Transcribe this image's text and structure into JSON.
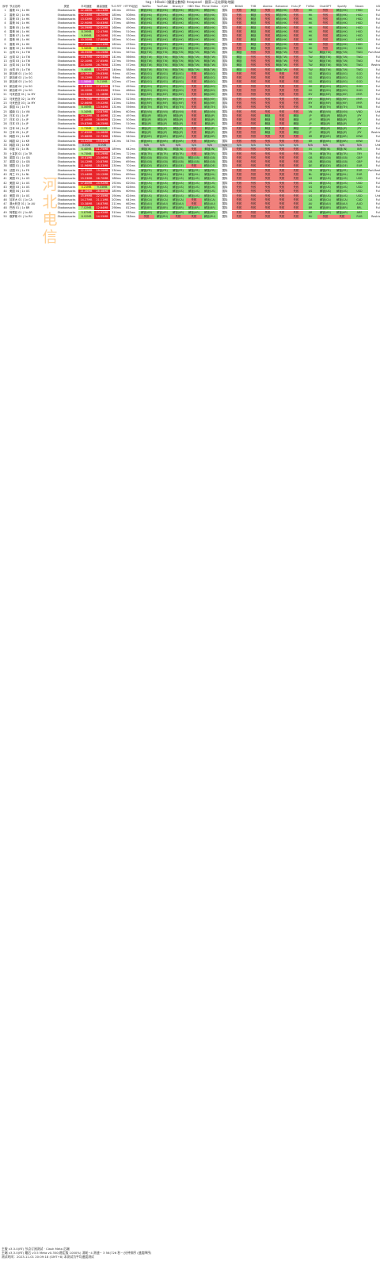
{
  "title": "tag – Hiboki (優選宝數線) troopood · 國家=泛化節點地圖",
  "watermark": "河北电信",
  "headers": [
    "序号",
    "节点名称",
    "类型",
    "平均速度",
    "最高速度",
    "TLS RTT",
    "HTTPS延迟",
    "Netflix",
    "YouTube",
    "Disney+",
    "HBO Max",
    "Prime Video",
    "iQIYI",
    "Bilibili",
    "TVB",
    "Abema",
    "Bahamut",
    "Hulu JP",
    "TikTok",
    "ChatGPT",
    "Spotify",
    "Steam",
    "UDP类型"
  ],
  "rows": [
    [
      "1",
      "香港 01 | 1x HK",
      "Shadowsocks",
      "22.46MB",
      "28.13MB",
      "161ms",
      "495ms",
      "解锁(HK)",
      "解锁(HK)",
      "解锁(HK)",
      "解锁(HK)",
      "解锁(HK)",
      "国际",
      "失败",
      "解锁",
      "失败",
      "解锁(HK)",
      "失败",
      "HK",
      "失败",
      "解锁(HK)",
      "HKD",
      "FullCone"
    ],
    [
      "2",
      "香港 02 | 1x HK",
      "Shadowsocks",
      "12.33MB",
      "18.20MB",
      "185ms",
      "508ms",
      "解锁(HK)",
      "解锁(HK)",
      "解锁(HK)",
      "解锁(HK)",
      "解锁(HK)",
      "国际",
      "失败",
      "解锁",
      "失败",
      "解锁(HK)",
      "失败",
      "HK",
      "失败",
      "解锁(HK)",
      "HKD",
      "FullCone"
    ],
    [
      "3",
      "香港 03 | 1x HK",
      "Shadowsocks",
      "13.52MB",
      "20.11MB",
      "176ms",
      "502ms",
      "解锁(HK)",
      "解锁(HK)",
      "解锁(HK)",
      "解锁(HK)",
      "解锁(HK)",
      "国际",
      "失败",
      "解锁",
      "失败",
      "解锁(HK)",
      "失败",
      "HK",
      "失败",
      "解锁(HK)",
      "HKD",
      "FullCone"
    ],
    [
      "4",
      "香港 04 | 1x HK",
      "Shadowsocks",
      "22.90MB",
      "30.63MB",
      "170ms",
      "489ms",
      "解锁(HK)",
      "解锁(HK)",
      "解锁(HK)",
      "解锁(HK)",
      "解锁(HK)",
      "国际",
      "失败",
      "解锁",
      "失败",
      "解锁(HK)",
      "失败",
      "HK",
      "失败",
      "解锁(HK)",
      "HKD",
      "FullCone"
    ],
    [
      "5",
      "香港 05 | 1x HK",
      "Shadowsocks",
      "24.59MB",
      "32.82MB",
      "168ms",
      "490ms",
      "解锁(HK)",
      "解锁(HK)",
      "解锁(HK)",
      "解锁(HK)",
      "解锁(HK)",
      "国际",
      "失败",
      "解锁",
      "失败",
      "解锁(HK)",
      "失败",
      "HK",
      "失败",
      "解锁(HK)",
      "HKD",
      "FullCone"
    ],
    [
      "6",
      "香港 06 | 1x HK",
      "Shadowsocks",
      "8.39MB",
      "12.47MB",
      "198ms",
      "510ms",
      "解锁(HK)",
      "解锁(HK)",
      "解锁(HK)",
      "解锁(HK)",
      "解锁(HK)",
      "国际",
      "失败",
      "解锁",
      "失败",
      "解锁(HK)",
      "失败",
      "HK",
      "失败",
      "解锁(HK)",
      "HKD",
      "FullCone"
    ],
    [
      "7",
      "香港 07 | 1x HK",
      "Shadowsocks",
      "9.89MB",
      "14.20MB",
      "191ms",
      "530ms",
      "解锁(HK)",
      "解锁(HK)",
      "解锁(HK)",
      "解锁(HK)",
      "解锁(HK)",
      "国际",
      "失败",
      "解锁",
      "失败",
      "解锁(HK)",
      "失败",
      "HK",
      "失败",
      "解锁(HK)",
      "HKD",
      "FullCone"
    ],
    [
      "8",
      "香港 08 | 1x HK",
      "Shadowsocks",
      "10.30MB",
      "17.80MB",
      "183ms",
      "501ms",
      "解锁(HK)",
      "解锁(HK)",
      "解锁(HK)",
      "解锁(HK)",
      "解锁(HK)",
      "国际",
      "失败",
      "解锁",
      "失败",
      "解锁(HK)",
      "失败",
      "HK",
      "失败",
      "解锁(HK)",
      "HKD",
      "FullCone"
    ],
    [
      "9",
      "香港 09 | 1x HK",
      "Shadowsocks",
      "17.09MB",
      "24.11MB",
      "160ms",
      "478ms",
      "解锁(HK)",
      "解锁(HK)",
      "解锁(HK)",
      "解锁(HK)",
      "解锁(HK)",
      "国际",
      "失败",
      "解锁",
      "失败",
      "解锁(HK)",
      "失败",
      "HK",
      "失败",
      "解锁(HK)",
      "HKD",
      "FullCone"
    ],
    [
      "10",
      "香港 10 | 1x HKD",
      "Shadowsocks",
      "3.56MB",
      "8.00MB",
      "202ms",
      "541ms",
      "解锁(HK)",
      "解锁(HK)",
      "解锁(HK)",
      "解锁(HK)",
      "解锁(HK)",
      "国际",
      "失败",
      "解锁",
      "失败",
      "解锁(HK)",
      "失败",
      "HK",
      "失败",
      "解锁(HK)",
      "HKD",
      "FullCone"
    ],
    [
      "11",
      "台湾 01 | 1x TW",
      "Shadowsocks",
      "18.55MB",
      "24.15MB",
      "132ms",
      "567ms",
      "解锁(TW)",
      "解锁(TW)",
      "解锁(TW)",
      "解锁(TW)",
      "解锁(TW)",
      "国际",
      "解锁",
      "失败",
      "失败",
      "解锁(TW)",
      "失败",
      "TW",
      "解锁(TW)",
      "解锁(TW)",
      "TWD",
      "Port-RestrictedCone"
    ],
    [
      "12",
      "台湾 02 | 1x TW",
      "Shadowsocks",
      "14.87MB",
      "22.54MB",
      "141ms",
      "566ms",
      "解锁(TW)",
      "解锁(TW)",
      "解锁(TW)",
      "解锁(TW)",
      "解锁(TW)",
      "国际",
      "解锁",
      "失败",
      "失败",
      "解锁(TW)",
      "失败",
      "TW",
      "解锁(TW)",
      "解锁(TW)",
      "TWD",
      "FullCone"
    ],
    [
      "13",
      "台湾 03 | 1x TW",
      "Shadowsocks",
      "22.10MB",
      "27.65MB",
      "127ms",
      "559ms",
      "解锁(TW)",
      "解锁(TW)",
      "解锁(TW)",
      "解锁(TW)",
      "解锁(TW)",
      "国际",
      "解锁",
      "失败",
      "失败",
      "解锁(TW)",
      "失败",
      "TW",
      "解锁(TW)",
      "解锁(TW)",
      "TWD",
      "FullCone"
    ],
    [
      "14",
      "台湾 04 | 1x TW",
      "Shadowsocks",
      "20.30MB",
      "26.79MB",
      "133ms",
      "572ms",
      "解锁(TW)",
      "解锁(TW)",
      "解锁(TW)",
      "解锁(TW)",
      "解锁(TW)",
      "国际",
      "解锁",
      "失败",
      "失败",
      "解锁(TW)",
      "失败",
      "TW",
      "解锁(TW)",
      "解锁(TW)",
      "TWD",
      "RestrictedCone"
    ],
    [
      "15",
      "台湾 05 | 1x TW",
      "Shadowsocks",
      "9.46MB",
      "15.24MB",
      "146ms",
      "588ms",
      "解锁(TW)",
      "解锁(TW)",
      "解锁(TW)",
      "解锁(TW)",
      "解锁(TW)",
      "国际",
      "解锁",
      "失败",
      "失败",
      "解锁(TW)",
      "失败",
      "TW",
      "解锁(TW)",
      "解锁(TW)",
      "TWD",
      "FullCone"
    ],
    [
      "16",
      "新加坡 01 | 1x SG",
      "Shadowsocks",
      "20.56MB",
      "29.83MB",
      "94ms",
      "452ms",
      "解锁(SG)",
      "解锁(SG)",
      "解锁(SG)",
      "失败",
      "解锁(SG)",
      "国际",
      "失败",
      "失败",
      "失败",
      "失败",
      "失败",
      "SG",
      "解锁(SG)",
      "解锁(SG)",
      "SGD",
      "FullCone"
    ],
    [
      "17",
      "新加坡 02 | 1x SG",
      "Shadowsocks",
      "18.22MB",
      "25.31MB",
      "98ms",
      "460ms",
      "解锁(SG)",
      "解锁(SG)",
      "解锁(SG)",
      "失败",
      "解锁(SG)",
      "国际",
      "失败",
      "失败",
      "失败",
      "失败",
      "失败",
      "SG",
      "解锁(SG)",
      "解锁(SG)",
      "SGD",
      "FullCone"
    ],
    [
      "18",
      "新加坡 03 | 1x SG",
      "Shadowsocks",
      "1.58MB",
      "5.21MB",
      "102ms",
      "471ms",
      "解锁(SG)",
      "解锁(SG)",
      "解锁(SG)",
      "失败",
      "解锁(SG)",
      "国际",
      "失败",
      "失败",
      "失败",
      "失败",
      "失败",
      "SG",
      "解锁(SG)",
      "解锁(SG)",
      "SGD",
      "FullCone"
    ],
    [
      "19",
      "新加坡 04 | 1x SG",
      "Shadowsocks",
      "11.63MB",
      "17.85MB",
      "97ms",
      "459ms",
      "解锁(SG)",
      "解锁(SG)",
      "解锁(SG)",
      "失败",
      "解锁(SG)",
      "国际",
      "失败",
      "失败",
      "失败",
      "失败",
      "失败",
      "SG",
      "解锁(SG)",
      "解锁(SG)",
      "SGD",
      "FullCone"
    ],
    [
      "20",
      "新加坡 05 | 1x SG",
      "Shadowsocks",
      "16.20MB",
      "23.95MB",
      "95ms",
      "466ms",
      "解锁(SG)",
      "解锁(SG)",
      "解锁(SG)",
      "失败",
      "解锁(SG)",
      "国际",
      "失败",
      "失败",
      "失败",
      "失败",
      "失败",
      "SG",
      "解锁(SG)",
      "解锁(SG)",
      "SGD",
      "FullCone"
    ],
    [
      "21",
      "马来西亚 01 | 1x MY",
      "Shadowsocks",
      "14.53MB",
      "21.18MB",
      "110ms",
      "512ms",
      "解锁(MY)",
      "解锁(MY)",
      "解锁(MY)",
      "失败",
      "解锁(MY)",
      "国际",
      "失败",
      "失败",
      "失败",
      "失败",
      "失败",
      "MY",
      "解锁(MY)",
      "解锁(MY)",
      "MYR",
      "FullCone"
    ],
    [
      "22",
      "马来西亚 02 | 1x MY",
      "Shadowsocks",
      "10.75MB",
      "16.40MB",
      "116ms",
      "523ms",
      "解锁(MY)",
      "解锁(MY)",
      "解锁(MY)",
      "失败",
      "解锁(MY)",
      "国际",
      "失败",
      "失败",
      "失败",
      "失败",
      "失败",
      "MY",
      "解锁(MY)",
      "解锁(MY)",
      "MYR",
      "FullCone"
    ],
    [
      "23",
      "马来西亚 03 | 1x MY",
      "Shadowsocks",
      "12.66MB",
      "19.02MB",
      "113ms",
      "518ms",
      "解锁(MY)",
      "解锁(MY)",
      "解锁(MY)",
      "失败",
      "解锁(MY)",
      "国际",
      "失败",
      "失败",
      "失败",
      "失败",
      "失败",
      "MY",
      "解锁(MY)",
      "解锁(MY)",
      "MYR",
      "FullCone"
    ],
    [
      "24",
      "泰国 01 | 1x TH",
      "Shadowsocks",
      "8.06MB",
      "13.94MB",
      "131ms",
      "556ms",
      "解锁(TH)",
      "解锁(TH)",
      "解锁(TH)",
      "失败",
      "解锁(TH)",
      "国际",
      "失败",
      "失败",
      "失败",
      "失败",
      "失败",
      "TH",
      "解锁(TH)",
      "解锁(TH)",
      "THB",
      "FullCone"
    ],
    [
      "25",
      "越南 01 | 1x VN",
      "Shadowsocks",
      "5.34MB",
      "10.87MB",
      "148ms",
      "603ms",
      "解锁(VN)",
      "解锁(VN)",
      "解锁(VN)",
      "失败",
      "解锁(VN)",
      "国际",
      "失败",
      "失败",
      "失败",
      "失败",
      "失败",
      "VN",
      "解锁(VN)",
      "解锁(VN)",
      "VND",
      "Unknown"
    ],
    [
      "26",
      "日本 01 | 1x JP",
      "Shadowsocks",
      "24.12MB",
      "31.40MB",
      "121ms",
      "497ms",
      "解锁(JP)",
      "解锁(JP)",
      "解锁(JP)",
      "失败",
      "解锁(JP)",
      "国际",
      "失败",
      "失败",
      "解锁",
      "失败",
      "解锁",
      "JP",
      "解锁(JP)",
      "解锁(JP)",
      "JPY",
      "FullCone"
    ],
    [
      "27",
      "日本 02 | 1x JP",
      "Shadowsocks",
      "21.40MB",
      "28.66MB",
      "124ms",
      "503ms",
      "解锁(JP)",
      "解锁(JP)",
      "解锁(JP)",
      "失败",
      "解锁(JP)",
      "国际",
      "失败",
      "失败",
      "解锁",
      "失败",
      "解锁",
      "JP",
      "解锁(JP)",
      "解锁(JP)",
      "JPY",
      "FullCone"
    ],
    [
      "28",
      "日本 03 | 1x JP",
      "Shadowsocks",
      "19.87MB",
      "26.25MB",
      "128ms",
      "510ms",
      "解锁(JP)",
      "解锁(JP)",
      "解锁(JP)",
      "失败",
      "解锁(JP)",
      "国际",
      "失败",
      "失败",
      "解锁",
      "失败",
      "解锁",
      "JP",
      "解锁(JP)",
      "解锁(JP)",
      "JPY",
      "FullCone"
    ],
    [
      "29",
      "日本 04 | 1x JP",
      "Shadowsocks",
      "2.73MB",
      "6.92MB",
      "135ms",
      "530ms",
      "解锁(JP)",
      "解锁(JP)",
      "解锁(JP)",
      "失败",
      "解锁(JP)",
      "国际",
      "失败",
      "失败",
      "解锁",
      "失败",
      "解锁",
      "JP",
      "解锁(JP)",
      "解锁(JP)",
      "JPY",
      "FullCone"
    ],
    [
      "30",
      "日本 05 | 1x JP",
      "Shadowsocks",
      "17.65MB",
      "24.06MB",
      "126ms",
      "508ms",
      "解锁(JP)",
      "解锁(JP)",
      "解锁(JP)",
      "失败",
      "解锁(JP)",
      "国际",
      "失败",
      "失败",
      "解锁",
      "失败",
      "解锁",
      "JP",
      "解锁(JP)",
      "解锁(JP)",
      "JPY",
      "RestrictedCone"
    ],
    [
      "31",
      "韩国 01 | 1x KR",
      "Shadowsocks",
      "15.88MB",
      "22.73MB",
      "138ms",
      "540ms",
      "解锁(KR)",
      "解锁(KR)",
      "解锁(KR)",
      "失败",
      "解锁(KR)",
      "国际",
      "失败",
      "失败",
      "失败",
      "失败",
      "失败",
      "KR",
      "解锁(KR)",
      "解锁(KR)",
      "KRW",
      "FullCone"
    ],
    [
      "32",
      "韩国 02 | 1x KR",
      "Shadowsocks",
      "13.02MB",
      "19.64MB",
      "141ms",
      "547ms",
      "解锁(KR)",
      "解锁(KR)",
      "解锁(KR)",
      "失败",
      "解锁(KR)",
      "国际",
      "失败",
      "失败",
      "失败",
      "失败",
      "失败",
      "KR",
      "解锁(KR)",
      "解锁(KR)",
      "KRW",
      "FullCone"
    ],
    [
      "33",
      "韩国 03 | 1x KR",
      "Shadowsocks",
      "0.00B",
      "0.00B",
      "-",
      "-",
      "N/A",
      "N/A",
      "N/A",
      "N/A",
      "N/A",
      "N/A",
      "N/A",
      "N/A",
      "N/A",
      "N/A",
      "N/A",
      "N/A",
      "N/A",
      "N/A",
      "N/A",
      "Unknown"
    ],
    [
      "34",
      "印度 01 | 1x IN",
      "Shadowsocks",
      "6.48MB",
      "11.75MB",
      "189ms",
      "642ms",
      "解锁(IN)",
      "解锁(IN)",
      "解锁(IN)",
      "失败",
      "解锁(IN)",
      "国际",
      "失败",
      "失败",
      "失败",
      "失败",
      "失败",
      "IN",
      "解锁(IN)",
      "解锁(IN)",
      "INR",
      "FullCone"
    ],
    [
      "35",
      "土耳其 01 | 1x TR",
      "Shadowsocks",
      "9.73MB",
      "15.19MB",
      "243ms",
      "721ms",
      "解锁(TR)",
      "解锁(TR)",
      "解锁(TR)",
      "失败",
      "解锁(TR)",
      "国际",
      "失败",
      "失败",
      "失败",
      "失败",
      "失败",
      "TR",
      "解锁(TR)",
      "解锁(TR)",
      "TRY",
      "FullCone"
    ],
    [
      "36",
      "英国 01 | 1x GB",
      "Shadowsocks",
      "16.41MB",
      "23.06MB",
      "221ms",
      "689ms",
      "解锁(GB)",
      "解锁(GB)",
      "解锁(GB)",
      "解锁(GB)",
      "解锁(GB)",
      "国际",
      "失败",
      "失败",
      "失败",
      "失败",
      "失败",
      "GB",
      "解锁(GB)",
      "解锁(GB)",
      "GBP",
      "FullCone"
    ],
    [
      "37",
      "英国 02 | 1x GB",
      "Shadowsocks",
      "14.12MB",
      "20.87MB",
      "226ms",
      "695ms",
      "解锁(GB)",
      "解锁(GB)",
      "解锁(GB)",
      "解锁(GB)",
      "解锁(GB)",
      "国际",
      "失败",
      "失败",
      "失败",
      "失败",
      "失败",
      "GB",
      "解锁(GB)",
      "解锁(GB)",
      "GBP",
      "FullCone"
    ],
    [
      "38",
      "德国 01 | 1x DE",
      "Shadowsocks",
      "11.96MB",
      "18.33MB",
      "230ms",
      "701ms",
      "解锁(DE)",
      "解锁(DE)",
      "解锁(DE)",
      "失败",
      "解锁(DE)",
      "国际",
      "失败",
      "失败",
      "失败",
      "失败",
      "失败",
      "DE",
      "解锁(DE)",
      "解锁(DE)",
      "EUR",
      "FullCone"
    ],
    [
      "39",
      "法国 01 | 1x FR",
      "Shadowsocks",
      "12.55MB",
      "19.20MB",
      "234ms",
      "708ms",
      "解锁(FR)",
      "解锁(FR)",
      "解锁(FR)",
      "解锁(FR)",
      "解锁(FR)",
      "国际",
      "失败",
      "失败",
      "失败",
      "失败",
      "失败",
      "FR",
      "解锁(FR)",
      "解锁(FR)",
      "EUR",
      "Port-RestrictedCone"
    ],
    [
      "40",
      "荷兰 01 | 1x NL",
      "Shadowsocks",
      "13.44MB",
      "20.12MB",
      "228ms",
      "699ms",
      "解锁(NL)",
      "解锁(NL)",
      "解锁(NL)",
      "解锁(NL)",
      "解锁(NL)",
      "国际",
      "失败",
      "失败",
      "失败",
      "失败",
      "失败",
      "NL",
      "解锁(NL)",
      "解锁(NL)",
      "EUR",
      "FullCone"
    ],
    [
      "41",
      "美国 01 | 1x US",
      "Shadowsocks",
      "19.33MB",
      "26.70MB",
      "188ms",
      "612ms",
      "解锁(US)",
      "解锁(US)",
      "解锁(US)",
      "解锁(US)",
      "解锁(US)",
      "国际",
      "失败",
      "失败",
      "失败",
      "失败",
      "失败",
      "US",
      "解锁(US)",
      "解锁(US)",
      "USD",
      "FullCone"
    ],
    [
      "42",
      "美国 02 | 1x US",
      "Shadowsocks",
      "17.80MB",
      "24.92MB",
      "192ms",
      "620ms",
      "解锁(US)",
      "解锁(US)",
      "解锁(US)",
      "解锁(US)",
      "解锁(US)",
      "国际",
      "失败",
      "失败",
      "失败",
      "失败",
      "失败",
      "US",
      "解锁(US)",
      "解锁(US)",
      "USD",
      "FullCone"
    ],
    [
      "43",
      "美国 03 | 1x US",
      "Shadowsocks",
      "4.21MB",
      "9.03MB",
      "197ms",
      "628ms",
      "解锁(US)",
      "解锁(US)",
      "解锁(US)",
      "解锁(US)",
      "解锁(US)",
      "国际",
      "失败",
      "失败",
      "失败",
      "失败",
      "失败",
      "US",
      "解锁(US)",
      "解锁(US)",
      "USD",
      "FullCone"
    ],
    [
      "44",
      "美国 04 | 1x US",
      "Shadowsocks",
      "21.06MB",
      "28.48MB",
      "185ms",
      "609ms",
      "解锁(US)",
      "解锁(US)",
      "解锁(US)",
      "解锁(US)",
      "解锁(US)",
      "国际",
      "失败",
      "失败",
      "失败",
      "失败",
      "失败",
      "US",
      "解锁(US)",
      "解锁(US)",
      "USD",
      "FullCone"
    ],
    [
      "45",
      "美国 05 | 1x US",
      "Shadowsocks",
      "15.69MB",
      "22.35MB",
      "194ms",
      "624ms",
      "解锁(US)",
      "解锁(US)",
      "解锁(US)",
      "解锁(US)",
      "解锁(US)",
      "国际",
      "失败",
      "失败",
      "失败",
      "失败",
      "失败",
      "US",
      "解锁(US)",
      "解锁(US)",
      "USD",
      "Unknown"
    ],
    [
      "46",
      "加拿大 01 | 1x CA",
      "Shadowsocks",
      "14.27MB",
      "21.11MB",
      "203ms",
      "641ms",
      "解锁(CA)",
      "解锁(CA)",
      "解锁(CA)",
      "失败",
      "解锁(CA)",
      "国际",
      "失败",
      "失败",
      "失败",
      "失败",
      "失败",
      "CA",
      "解锁(CA)",
      "解锁(CA)",
      "CAD",
      "FullCone"
    ],
    [
      "47",
      "澳大利亚 01 | 1x AU",
      "Shadowsocks",
      "10.38MB",
      "16.87MB",
      "211ms",
      "662ms",
      "解锁(AU)",
      "解锁(AU)",
      "解锁(AU)",
      "失败",
      "解锁(AU)",
      "国际",
      "失败",
      "失败",
      "失败",
      "失败",
      "失败",
      "AU",
      "解锁(AU)",
      "解锁(AU)",
      "AUD",
      "FullCone"
    ],
    [
      "48",
      "巴西 01 | 1x BR",
      "Shadowsocks",
      "7.02MB",
      "12.64MB",
      "298ms",
      "812ms",
      "解锁(BR)",
      "解锁(BR)",
      "解锁(BR)",
      "解锁(BR)",
      "解锁(BR)",
      "国际",
      "失败",
      "失败",
      "失败",
      "失败",
      "失败",
      "BR",
      "解锁(BR)",
      "解锁(BR)",
      "BRL",
      "FullCone"
    ],
    [
      "49",
      "阿根廷 01 | 1x AR",
      "Shadowsocks",
      "5.87MB",
      "10.92MB",
      "310ms",
      "835ms",
      "解锁(AR)",
      "解锁(AR)",
      "解锁(AR)",
      "解锁(AR)",
      "解锁(AR)",
      "国际",
      "失败",
      "失败",
      "失败",
      "失败",
      "失败",
      "AR",
      "解锁(AR)",
      "解锁(AR)",
      "ARS",
      "FullCone"
    ],
    [
      "50",
      "俄罗斯 01 | 1x RU",
      "Shadowsocks",
      "8.92MB",
      "14.55MB",
      "256ms",
      "748ms",
      "失败",
      "解锁(RU)",
      "失败",
      "失败",
      "解锁(RU)",
      "国际",
      "失败",
      "失败",
      "失败",
      "失败",
      "失败",
      "RU",
      "失败",
      "失败",
      "RUB",
      "RestrictedCone"
    ]
  ],
  "footer": [
    "主服 v3.3.0(RT) 节点订阅测试 ·  Clash Meta 后端",
    "主端 v3.3.0(RT) 最后 v3.5 Meta v0.350(稳定版 1000%) 消耗~4 测速~ 3 56(726 秒~)分钟排序 (速度降序)",
    "测试时间：2023-11-01 20:09:18 (GMT+8)  本测试为平均速度测试"
  ]
}
